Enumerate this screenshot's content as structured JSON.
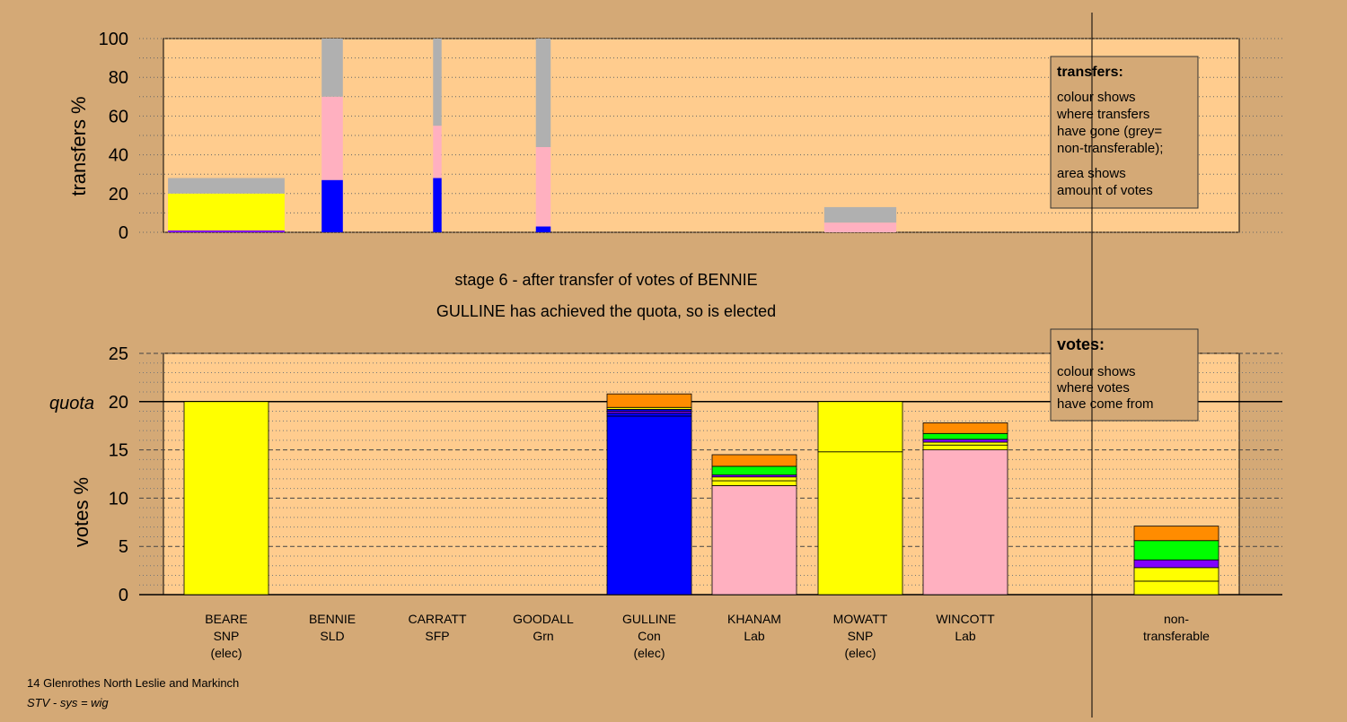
{
  "stage_title": "stage 6 - after transfer of votes of BENNIE",
  "stage_subtitle": "GULLINE has achieved the quota, so is elected",
  "footer": {
    "line1": "14 Glenrothes North Leslie and Markinch",
    "line2": "STV - sys = wig"
  },
  "colors": {
    "background": "#d4a976",
    "plot": "#ffcc8e",
    "SNP": "#ffff00",
    "SLD": "#8000ff",
    "Con": "#0000ff",
    "Lab": "#ffb0c0",
    "Grn": "#00ff00",
    "SFP": "#ff8c00",
    "nontransferable": "#b0b0b0"
  },
  "candidates": [
    {
      "name": "BEARE",
      "party": "SNP",
      "status": "(elec)"
    },
    {
      "name": "BENNIE",
      "party": "SLD",
      "status": ""
    },
    {
      "name": "CARRATT",
      "party": "SFP",
      "status": ""
    },
    {
      "name": "GOODALL",
      "party": "Grn",
      "status": ""
    },
    {
      "name": "GULLINE",
      "party": "Con",
      "status": "(elec)"
    },
    {
      "name": "KHANAM",
      "party": "Lab",
      "status": ""
    },
    {
      "name": "MOWATT",
      "party": "SNP",
      "status": "(elec)"
    },
    {
      "name": "WINCOTT",
      "party": "Lab",
      "status": ""
    },
    {
      "name": "non-\ntransferable",
      "party": "",
      "status": ""
    }
  ],
  "legends": {
    "transfers": {
      "title": "transfers:",
      "lines1": [
        "colour shows",
        "where transfers",
        "have gone (grey=",
        "non-transferable);"
      ],
      "lines2": [
        "area shows",
        "amount of votes"
      ]
    },
    "votes": {
      "title": "votes:",
      "lines1": [
        "colour shows",
        "where votes",
        "have come from"
      ]
    }
  },
  "chart_data": [
    {
      "type": "bar",
      "name": "transfers",
      "ylabel": "transfers %",
      "ylim": [
        0,
        100
      ],
      "yticks": [
        0,
        20,
        40,
        60,
        80,
        100
      ],
      "grid": "dotted",
      "bars": [
        {
          "from": "BEARE",
          "width_pct": 11,
          "segments": [
            {
              "party": "SLD",
              "value": 1
            },
            {
              "party": "SNP",
              "value": 2
            },
            {
              "party": "SNP",
              "value": 17
            },
            {
              "party": "nontransferable",
              "value": 5
            },
            {
              "party": "nontransferable",
              "value": 3
            }
          ]
        },
        {
          "from": "BENNIE",
          "width_pct": 2,
          "segments": [
            {
              "party": "Con",
              "value": 27
            },
            {
              "party": "Lab",
              "value": 43
            },
            {
              "party": "nontransferable",
              "value": 30
            }
          ]
        },
        {
          "from": "CARRATT",
          "width_pct": 0.8,
          "segments": [
            {
              "party": "Con",
              "value": 28
            },
            {
              "party": "Lab",
              "value": 27
            },
            {
              "party": "nontransferable",
              "value": 45
            }
          ]
        },
        {
          "from": "GOODALL",
          "width_pct": 1.4,
          "segments": [
            {
              "party": "Con",
              "value": 3
            },
            {
              "party": "Lab",
              "value": 41
            },
            {
              "party": "nontransferable",
              "value": 56
            }
          ]
        },
        {
          "from": "MOWATT",
          "width_pct": 6.8,
          "segments": [
            {
              "party": "Lab",
              "value": 5
            },
            {
              "party": "nontransferable",
              "value": 8
            }
          ]
        }
      ]
    },
    {
      "type": "bar",
      "name": "votes",
      "ylabel": "votes %",
      "ylim": [
        0,
        25
      ],
      "yticks": [
        0,
        5,
        10,
        15,
        20,
        25
      ],
      "quota": 20,
      "quota_label": "quota",
      "grid": "dashed",
      "bars": [
        {
          "candidate": "BEARE",
          "segments": [
            {
              "party": "SNP",
              "value": 20
            }
          ]
        },
        {
          "candidate": "BENNIE",
          "segments": []
        },
        {
          "candidate": "CARRATT",
          "segments": []
        },
        {
          "candidate": "GOODALL",
          "segments": []
        },
        {
          "candidate": "GULLINE",
          "segments": [
            {
              "party": "Con",
              "value": 18.5
            },
            {
              "party": "Con",
              "value": 0.3
            },
            {
              "party": "SLD",
              "value": 0.2
            },
            {
              "party": "Con",
              "value": 0.2
            },
            {
              "party": "SNP",
              "value": 0.2
            },
            {
              "party": "SFP",
              "value": 1.4
            }
          ]
        },
        {
          "candidate": "KHANAM",
          "segments": [
            {
              "party": "Lab",
              "value": 11.3
            },
            {
              "party": "SNP",
              "value": 0.5
            },
            {
              "party": "SNP",
              "value": 0.4
            },
            {
              "party": "SLD",
              "value": 0.2
            },
            {
              "party": "Grn",
              "value": 0.9
            },
            {
              "party": "SFP",
              "value": 1.2
            }
          ]
        },
        {
          "candidate": "MOWATT",
          "segments": [
            {
              "party": "SNP",
              "value": 14.8
            },
            {
              "party": "SNP",
              "value": 5.2
            }
          ]
        },
        {
          "candidate": "WINCOTT",
          "segments": [
            {
              "party": "Lab",
              "value": 15
            },
            {
              "party": "SNP",
              "value": 0.5
            },
            {
              "party": "SNP",
              "value": 0.3
            },
            {
              "party": "SLD",
              "value": 0.3
            },
            {
              "party": "Grn",
              "value": 0.6
            },
            {
              "party": "SFP",
              "value": 1.1
            }
          ]
        },
        {
          "candidate": "non-transferable",
          "segments": [
            {
              "party": "SNP",
              "value": 1.4
            },
            {
              "party": "SNP",
              "value": 1.4
            },
            {
              "party": "SLD",
              "value": 0.8
            },
            {
              "party": "Grn",
              "value": 2
            },
            {
              "party": "SFP",
              "value": 1.5
            }
          ]
        }
      ]
    }
  ]
}
